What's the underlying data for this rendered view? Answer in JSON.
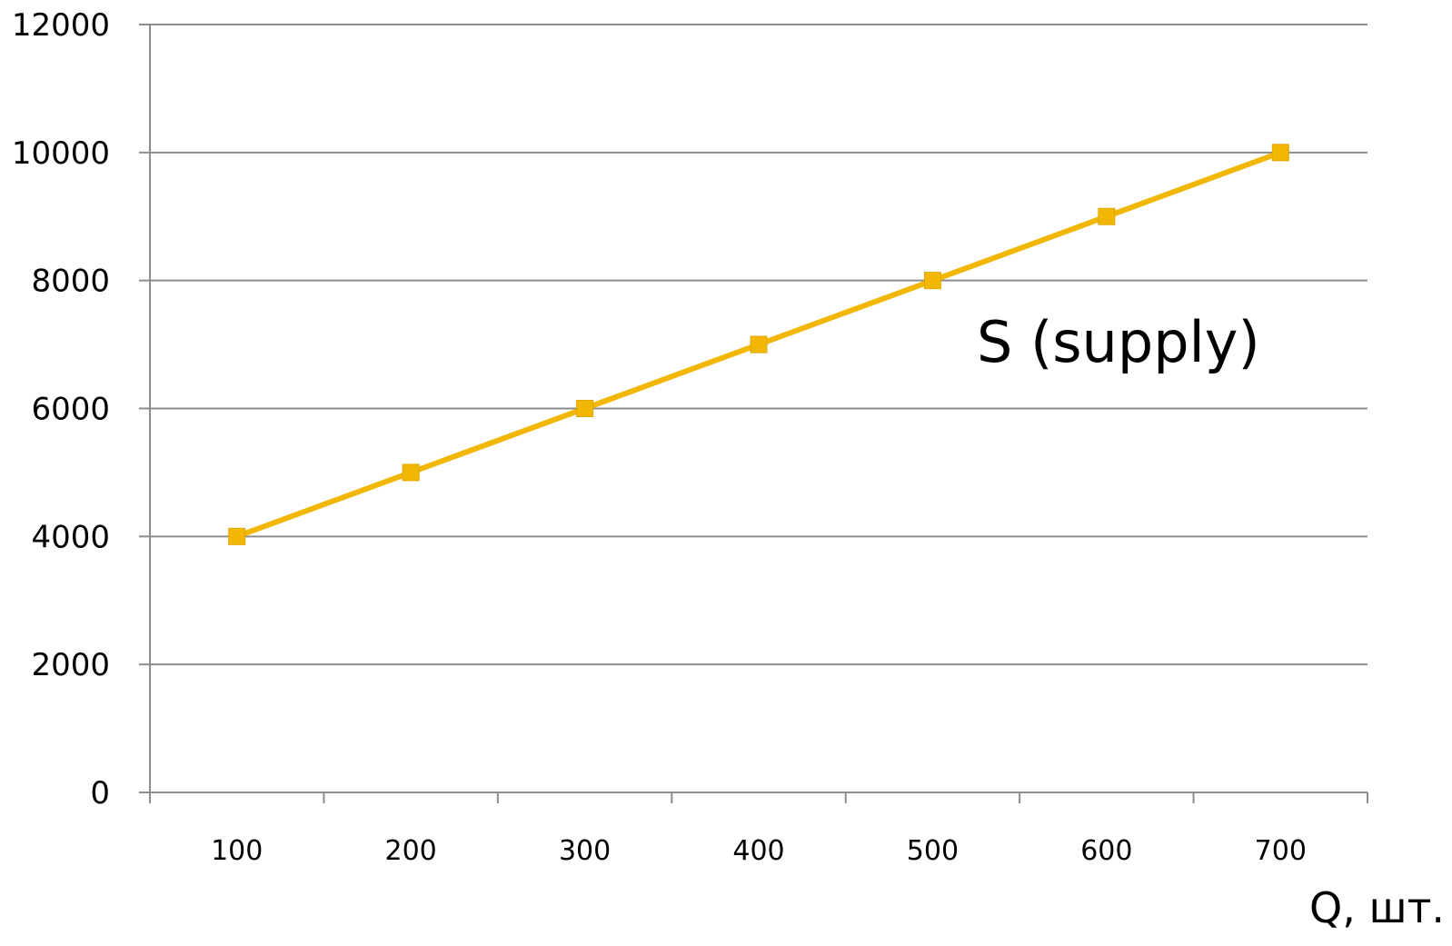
{
  "chart_data": {
    "type": "line",
    "categories": [
      "100",
      "200",
      "300",
      "400",
      "500",
      "600",
      "700"
    ],
    "series": [
      {
        "name": "S (supply)",
        "values": [
          4000,
          5000,
          6000,
          7000,
          8000,
          9000,
          10000
        ],
        "color": "#F2B705"
      }
    ],
    "title": "",
    "xlabel": "Q, шт.",
    "ylabel": "",
    "ylim": [
      0,
      12000
    ],
    "yticks": [
      "0",
      "2000",
      "4000",
      "6000",
      "8000",
      "10000",
      "12000"
    ],
    "grid": true,
    "grid_color": "#8C8C8C",
    "marker": "square"
  }
}
